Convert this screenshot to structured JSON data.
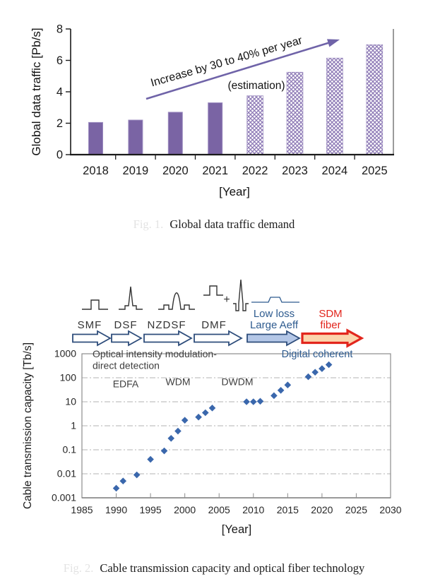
{
  "figure1": {
    "caption_prefix_faint": "Fig. 1.",
    "caption": "Global data traffic demand"
  },
  "figure2": {
    "caption_prefix_faint": "Fig. 2.",
    "caption": "Cable transmission capacity and optical fiber technology"
  },
  "chart_data": [
    {
      "type": "bar",
      "title": "",
      "categories": [
        "2018",
        "2019",
        "2020",
        "2021",
        "2022",
        "2023",
        "2024",
        "2025"
      ],
      "values": [
        2.05,
        2.2,
        2.7,
        3.3,
        3.75,
        5.25,
        6.15,
        7.0
      ],
      "estimated": [
        false,
        false,
        false,
        false,
        true,
        true,
        true,
        true
      ],
      "ylabel": "Global data traffic [Pb/s]",
      "xlabel": "[Year]",
      "ylim": [
        0,
        8
      ],
      "yticks": [
        "0",
        "2",
        "4",
        "6",
        "8"
      ],
      "grid": false,
      "legend": "none",
      "annotations": {
        "trend_arrow_label": "Increase by 30 to 40% per year",
        "estimation_label": "(estimation)"
      },
      "colors": {
        "bar_solid": "#7a64a4",
        "bar_pattern": "#8d79b5",
        "bar_edge": "#9c8cc0",
        "trend_arrow": "#6f63a8"
      }
    },
    {
      "type": "scatter",
      "title": "",
      "xlabel": "[Year]",
      "ylabel": "Cable transmission capacity [Tb/s]",
      "xlim": [
        1985,
        2030
      ],
      "ylog_range": [
        0.001,
        1000
      ],
      "xticks": [
        "1985",
        "1990",
        "1995",
        "2000",
        "2005",
        "2010",
        "2015",
        "2020",
        "2025",
        "2030"
      ],
      "yticks": [
        "1000",
        "100",
        "10",
        "1",
        "0.1",
        "0.01",
        "0.001"
      ],
      "grid": "horizontal-dash-dot",
      "legend": "none",
      "points": [
        [
          1990,
          0.0025
        ],
        [
          1991,
          0.005
        ],
        [
          1993,
          0.009
        ],
        [
          1995,
          0.04
        ],
        [
          1997,
          0.09
        ],
        [
          1998,
          0.3
        ],
        [
          1999,
          0.6
        ],
        [
          2000,
          1.7
        ],
        [
          2002,
          2.3
        ],
        [
          2003,
          3.5
        ],
        [
          2004,
          5.5
        ],
        [
          2009,
          10
        ],
        [
          2010,
          10
        ],
        [
          2011,
          10.5
        ],
        [
          2013,
          18
        ],
        [
          2014,
          30
        ],
        [
          2015,
          50
        ],
        [
          2018,
          110
        ],
        [
          2019,
          170
        ],
        [
          2020,
          240
        ],
        [
          2021,
          350
        ]
      ],
      "annotations": {
        "era1_line1": "Optical intensity modulation-",
        "era1_line2": "direct detection",
        "era2": "Digital coherent",
        "amp_labels": [
          "EDFA",
          "WDM",
          "DWDM"
        ],
        "plus_sign": "+"
      },
      "technology_roadmap": [
        {
          "label_lines": [
            "SMF"
          ],
          "style": "outline"
        },
        {
          "label_lines": [
            "DSF"
          ],
          "style": "outline"
        },
        {
          "label_lines": [
            "NZDSF"
          ],
          "style": "outline"
        },
        {
          "label_lines": [
            "DMF"
          ],
          "style": "outline"
        },
        {
          "label_lines": [
            "Low loss",
            "Large Aeff"
          ],
          "style": "filled-blue"
        },
        {
          "label_lines": [
            "SDM",
            "fiber"
          ],
          "style": "filled-red"
        }
      ],
      "colors": {
        "marker": "#3a67ac",
        "era_text": "#2e5b8f",
        "annotation_text": "#3f3f3f",
        "roadmap_outline": "#2e4d7b",
        "lowloss_fill": "#b4c7e7",
        "sdm_red": "#e2261d",
        "sdm_fill": "#fbd5ad",
        "gridline": "#b3b3b3",
        "border": "#8c8c8c"
      }
    }
  ]
}
